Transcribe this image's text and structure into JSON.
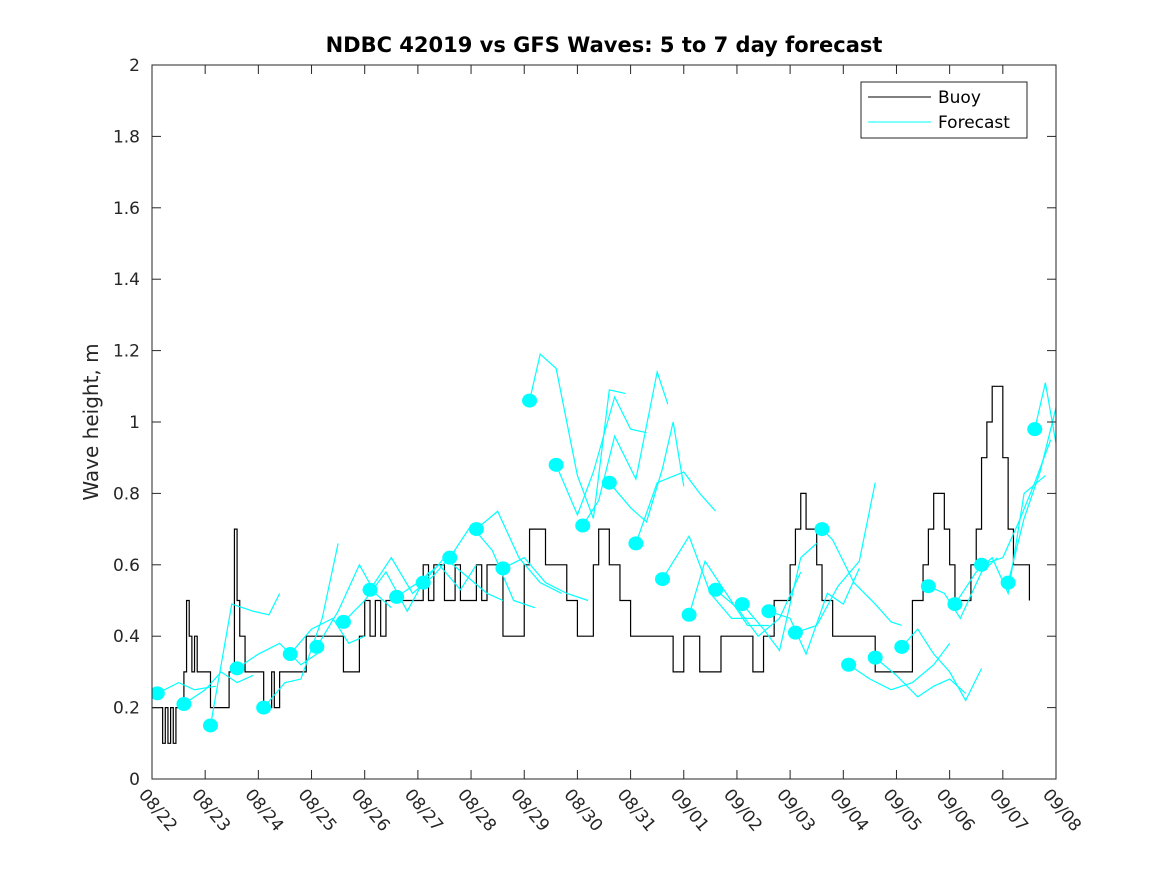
{
  "chart_data": {
    "type": "line",
    "title": "NDBC 42019 vs GFS Waves: 5 to 7 day forecast",
    "xlabel": "",
    "ylabel": "Wave height, m",
    "ylim": [
      0,
      2
    ],
    "xlim": [
      0,
      17
    ],
    "yticks": [
      0,
      0.2,
      0.4,
      0.6,
      0.8,
      1,
      1.2,
      1.4,
      1.6,
      1.8,
      2
    ],
    "ytick_labels": [
      "0",
      "0.2",
      "0.4",
      "0.6",
      "0.8",
      "1",
      "1.2",
      "1.4",
      "1.6",
      "1.8",
      "2"
    ],
    "xticks": [
      0,
      1,
      2,
      3,
      4,
      5,
      6,
      7,
      8,
      9,
      10,
      11,
      12,
      13,
      14,
      15,
      16,
      17
    ],
    "xtick_labels": [
      "08/22",
      "08/23",
      "08/24",
      "08/25",
      "08/26",
      "08/27",
      "08/28",
      "08/29",
      "08/30",
      "08/31",
      "09/01",
      "09/02",
      "09/03",
      "09/04",
      "09/05",
      "09/06",
      "09/07",
      "09/08"
    ],
    "x_units": "days since 08/22",
    "grid": false,
    "legend": {
      "position": "top-right",
      "entries": [
        {
          "label": "Buoy",
          "color": "#000000"
        },
        {
          "label": "Forecast",
          "color": "#00ffff"
        }
      ]
    },
    "series": [
      {
        "name": "Buoy",
        "color": "#000000",
        "x": [
          0,
          0.15,
          0.2,
          0.25,
          0.3,
          0.35,
          0.4,
          0.45,
          0.55,
          0.6,
          0.6,
          0.65,
          0.7,
          0.75,
          0.8,
          0.85,
          0.9,
          1.1,
          1.3,
          1.45,
          1.55,
          1.6,
          1.65,
          1.75,
          1.9,
          2.1,
          2.25,
          2.3,
          2.4,
          2.5,
          2.7,
          2.9,
          3.0,
          3.1,
          3.5,
          3.6,
          3.7,
          3.9,
          4.0,
          4.1,
          4.2,
          4.3,
          4.4,
          4.6,
          5.0,
          5.1,
          5.2,
          5.3,
          5.5,
          5.6,
          5.7,
          5.8,
          6.0,
          6.1,
          6.2,
          6.3,
          6.5,
          6.6,
          6.9,
          7.0,
          7.1,
          7.3,
          7.4,
          7.6,
          7.8,
          8.0,
          8.3,
          8.4,
          8.6,
          8.8,
          9.0,
          9.2,
          9.6,
          9.8,
          10.0,
          10.1,
          10.3,
          10.5,
          10.7,
          11.0,
          11.1,
          11.3,
          11.5,
          11.7,
          11.9,
          12.0,
          12.1,
          12.2,
          12.3,
          12.5,
          12.6,
          12.7,
          12.8,
          13.0,
          13.2,
          13.4,
          13.6,
          14.0,
          14.3,
          14.5,
          14.6,
          14.7,
          14.8,
          14.9,
          15.0,
          15.1,
          15.2,
          15.4,
          15.5,
          15.6,
          15.7,
          15.8,
          16.0,
          16.1,
          16.2,
          16.3,
          16.5
        ],
        "y": [
          0.2,
          0.2,
          0.1,
          0.2,
          0.1,
          0.2,
          0.1,
          0.2,
          0.2,
          0.3,
          0.3,
          0.5,
          0.4,
          0.3,
          0.4,
          0.3,
          0.3,
          0.2,
          0.2,
          0.3,
          0.7,
          0.5,
          0.4,
          0.3,
          0.3,
          0.2,
          0.3,
          0.2,
          0.3,
          0.3,
          0.3,
          0.4,
          0.4,
          0.4,
          0.4,
          0.3,
          0.3,
          0.4,
          0.5,
          0.4,
          0.5,
          0.4,
          0.5,
          0.5,
          0.5,
          0.6,
          0.5,
          0.6,
          0.5,
          0.5,
          0.6,
          0.5,
          0.5,
          0.6,
          0.5,
          0.6,
          0.6,
          0.4,
          0.4,
          0.6,
          0.7,
          0.7,
          0.6,
          0.6,
          0.5,
          0.4,
          0.6,
          0.7,
          0.6,
          0.5,
          0.4,
          0.4,
          0.4,
          0.3,
          0.4,
          0.4,
          0.3,
          0.3,
          0.4,
          0.4,
          0.4,
          0.3,
          0.4,
          0.5,
          0.5,
          0.6,
          0.7,
          0.8,
          0.7,
          0.6,
          0.5,
          0.5,
          0.4,
          0.4,
          0.4,
          0.4,
          0.3,
          0.3,
          0.5,
          0.6,
          0.7,
          0.8,
          0.8,
          0.7,
          0.6,
          0.5,
          0.5,
          0.6,
          0.7,
          0.9,
          1.0,
          1.1,
          0.9,
          0.7,
          0.6,
          0.6,
          0.5
        ]
      }
    ],
    "forecast_traces": [
      {
        "x": [
          0.1,
          0.5,
          0.8,
          1.2
        ],
        "y": [
          0.24,
          0.27,
          0.25,
          0.26
        ]
      },
      {
        "x": [
          0.6,
          1.0,
          1.3,
          1.6,
          1.9
        ],
        "y": [
          0.21,
          0.25,
          0.3,
          0.27,
          0.29
        ]
      },
      {
        "x": [
          1.1,
          1.5,
          1.9,
          2.2,
          2.4
        ],
        "y": [
          0.15,
          0.49,
          0.47,
          0.46,
          0.52
        ]
      },
      {
        "x": [
          1.6,
          2.0,
          2.4,
          2.8,
          3.1
        ],
        "y": [
          0.31,
          0.35,
          0.38,
          0.32,
          0.35
        ]
      },
      {
        "x": [
          2.1,
          2.5,
          2.8,
          3.2,
          3.5
        ],
        "y": [
          0.2,
          0.27,
          0.28,
          0.45,
          0.66
        ]
      },
      {
        "x": [
          2.6,
          3.0,
          3.4,
          3.7,
          4.0
        ],
        "y": [
          0.35,
          0.42,
          0.45,
          0.38,
          0.4
        ]
      },
      {
        "x": [
          3.1,
          3.5,
          3.9,
          4.2,
          4.5
        ],
        "y": [
          0.37,
          0.47,
          0.6,
          0.52,
          0.48
        ]
      },
      {
        "x": [
          3.6,
          4.0,
          4.4,
          4.8,
          5.2
        ],
        "y": [
          0.44,
          0.5,
          0.58,
          0.47,
          0.58
        ]
      },
      {
        "x": [
          4.1,
          4.5,
          4.9,
          5.3,
          5.7
        ],
        "y": [
          0.53,
          0.62,
          0.52,
          0.57,
          0.64
        ]
      },
      {
        "x": [
          4.6,
          5.0,
          5.4,
          5.8,
          6.1
        ],
        "y": [
          0.51,
          0.55,
          0.6,
          0.53,
          0.6
        ]
      },
      {
        "x": [
          5.1,
          5.5,
          5.9,
          6.3,
          6.6
        ],
        "y": [
          0.55,
          0.62,
          0.57,
          0.52,
          0.5
        ]
      },
      {
        "x": [
          5.6,
          6.0,
          6.4,
          6.8,
          7.2
        ],
        "y": [
          0.62,
          0.71,
          0.64,
          0.5,
          0.48
        ]
      },
      {
        "x": [
          6.1,
          6.5,
          6.9,
          7.3,
          7.7
        ],
        "y": [
          0.7,
          0.75,
          0.62,
          0.55,
          0.52
        ]
      },
      {
        "x": [
          6.6,
          7.0,
          7.4,
          7.8,
          8.2
        ],
        "y": [
          0.59,
          0.62,
          0.55,
          0.52,
          0.5
        ]
      },
      {
        "x": [
          7.1,
          7.3,
          7.6,
          8.0,
          8.3,
          8.6,
          8.9
        ],
        "y": [
          1.06,
          1.19,
          1.15,
          0.85,
          0.73,
          1.09,
          1.08
        ]
      },
      {
        "x": [
          7.6,
          8.0,
          8.3,
          8.7,
          9.0,
          9.3
        ],
        "y": [
          0.88,
          0.74,
          0.86,
          1.07,
          0.98,
          0.97
        ]
      },
      {
        "x": [
          8.1,
          8.4,
          8.7,
          9.1,
          9.5,
          9.7
        ],
        "y": [
          0.71,
          0.78,
          0.96,
          0.84,
          1.14,
          1.05
        ]
      },
      {
        "x": [
          8.6,
          9.0,
          9.3,
          9.6,
          9.8,
          10.0
        ],
        "y": [
          0.83,
          0.76,
          0.72,
          0.87,
          1.0,
          0.82
        ]
      },
      {
        "x": [
          9.1,
          9.5,
          10.0,
          10.3,
          10.6
        ],
        "y": [
          0.66,
          0.83,
          0.86,
          0.8,
          0.75
        ]
      },
      {
        "x": [
          9.6,
          10.1,
          10.5,
          10.9,
          11.3
        ],
        "y": [
          0.56,
          0.68,
          0.52,
          0.45,
          0.45
        ]
      },
      {
        "x": [
          10.1,
          10.4,
          10.8,
          11.2,
          11.6
        ],
        "y": [
          0.46,
          0.61,
          0.52,
          0.43,
          0.43
        ]
      },
      {
        "x": [
          10.6,
          11.0,
          11.4,
          11.8,
          12.2
        ],
        "y": [
          0.53,
          0.48,
          0.4,
          0.45,
          0.58
        ]
      },
      {
        "x": [
          11.1,
          11.5,
          11.8,
          12.2,
          12.5
        ],
        "y": [
          0.49,
          0.42,
          0.36,
          0.62,
          0.66
        ]
      },
      {
        "x": [
          11.6,
          12.0,
          12.3,
          12.7,
          13.0,
          13.3
        ],
        "y": [
          0.47,
          0.45,
          0.35,
          0.52,
          0.49,
          0.59
        ]
      },
      {
        "x": [
          12.1,
          12.5,
          12.9,
          13.3,
          13.6
        ],
        "y": [
          0.41,
          0.43,
          0.54,
          0.61,
          0.83
        ]
      },
      {
        "x": [
          12.6,
          12.8,
          13.2,
          13.6,
          13.9,
          14.1
        ],
        "y": [
          0.7,
          0.67,
          0.55,
          0.49,
          0.44,
          0.43
        ]
      },
      {
        "x": [
          13.1,
          13.5,
          13.9,
          14.3,
          14.7,
          15.0
        ],
        "y": [
          0.32,
          0.28,
          0.25,
          0.27,
          0.32,
          0.38
        ]
      },
      {
        "x": [
          13.6,
          14.0,
          14.4,
          14.7,
          15.0,
          15.3
        ],
        "y": [
          0.34,
          0.29,
          0.23,
          0.26,
          0.28,
          0.24
        ]
      },
      {
        "x": [
          14.1,
          14.4,
          14.7,
          15.0,
          15.3,
          15.6
        ],
        "y": [
          0.37,
          0.42,
          0.35,
          0.3,
          0.22,
          0.31
        ]
      },
      {
        "x": [
          14.6,
          14.9,
          15.2,
          15.6,
          15.9
        ],
        "y": [
          0.54,
          0.52,
          0.45,
          0.58,
          0.62
        ]
      },
      {
        "x": [
          15.1,
          15.5,
          15.8,
          16.1,
          16.4,
          16.8
        ],
        "y": [
          0.49,
          0.58,
          0.62,
          0.52,
          0.8,
          0.85
        ]
      },
      {
        "x": [
          15.6,
          16.0,
          16.3,
          16.6,
          16.9
        ],
        "y": [
          0.6,
          0.62,
          0.72,
          0.83,
          0.95
        ]
      },
      {
        "x": [
          16.1,
          16.4,
          16.7,
          16.9,
          17.0
        ],
        "y": [
          0.55,
          0.73,
          0.86,
          0.98,
          1.04
        ]
      },
      {
        "x": [
          16.6,
          16.8,
          17.0
        ],
        "y": [
          0.98,
          1.11,
          0.94
        ]
      }
    ],
    "forecast_markers": {
      "color": "#00ffff",
      "x": [
        0.1,
        0.6,
        1.1,
        1.6,
        2.1,
        2.6,
        3.1,
        3.6,
        4.1,
        4.6,
        5.1,
        5.6,
        6.1,
        6.6,
        7.1,
        7.6,
        8.1,
        8.6,
        9.1,
        9.6,
        10.1,
        10.6,
        11.1,
        11.6,
        12.1,
        12.6,
        13.1,
        13.6,
        14.1,
        14.6,
        15.1,
        15.6,
        16.1,
        16.6
      ],
      "y": [
        0.24,
        0.21,
        0.15,
        0.31,
        0.2,
        0.35,
        0.37,
        0.44,
        0.53,
        0.51,
        0.55,
        0.62,
        0.7,
        0.59,
        1.06,
        0.88,
        0.71,
        0.83,
        0.66,
        0.56,
        0.46,
        0.53,
        0.49,
        0.47,
        0.41,
        0.7,
        0.32,
        0.34,
        0.37,
        0.54,
        0.49,
        0.6,
        0.55,
        0.98
      ]
    }
  }
}
